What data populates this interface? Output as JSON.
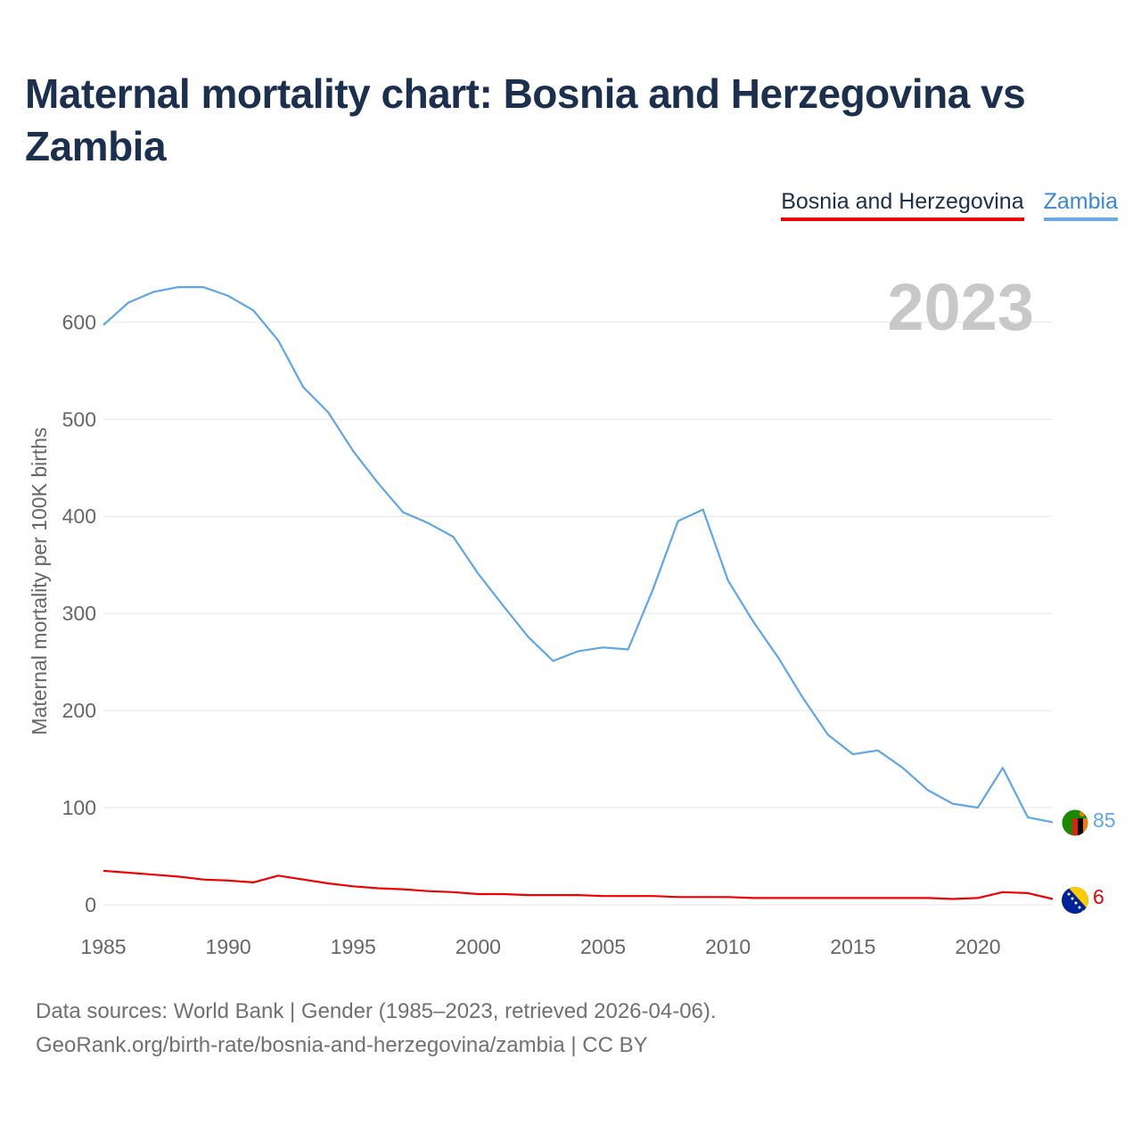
{
  "title": "Maternal mortality chart: Bosnia and Herzegovina vs Zambia",
  "legend": {
    "bosnia": "Bosnia and Herzegovina",
    "zambia": "Zambia"
  },
  "year_overlay": "2023",
  "footer": {
    "line1": "Data sources: World Bank | Gender (1985–2023, retrieved 2026-04-06).",
    "line2": "GeoRank.org/birth-rate/bosnia-and-herzegovina/zambia | CC BY"
  },
  "icons": {
    "zambia_flag": "zambia-flag-icon",
    "bosnia_flag": "bosnia-flag-icon"
  },
  "colors": {
    "bosnia": "#ee0000",
    "zambia": "#5ea6e8",
    "title": "#1b2f4f",
    "axis_text": "#666666",
    "grid": "#e6e6e6",
    "year_overlay": "#c8c8c8"
  },
  "chart_data": {
    "type": "line",
    "title": "Maternal mortality chart: Bosnia and Herzegovina vs Zambia",
    "xlabel": "",
    "ylabel": "Maternal mortality per 100K births",
    "xlim": [
      1985,
      2023
    ],
    "ylim": [
      0,
      650
    ],
    "xticks": [
      1985,
      1990,
      1995,
      2000,
      2005,
      2010,
      2015,
      2020
    ],
    "yticks": [
      0,
      100,
      200,
      300,
      400,
      500,
      600
    ],
    "grid": true,
    "legend_position": "top-right",
    "x": [
      1985,
      1986,
      1987,
      1988,
      1989,
      1990,
      1991,
      1992,
      1993,
      1994,
      1995,
      1996,
      1997,
      1998,
      1999,
      2000,
      2001,
      2002,
      2003,
      2004,
      2005,
      2006,
      2007,
      2008,
      2009,
      2010,
      2011,
      2012,
      2013,
      2014,
      2015,
      2016,
      2017,
      2018,
      2019,
      2020,
      2021,
      2022,
      2023
    ],
    "series": [
      {
        "name": "Bosnia and Herzegovina",
        "color": "#ee0000",
        "end_label": "6",
        "values": [
          35,
          33,
          31,
          29,
          26,
          25,
          23,
          30,
          26,
          22,
          19,
          17,
          16,
          14,
          13,
          11,
          11,
          10,
          10,
          10,
          9,
          9,
          9,
          8,
          8,
          8,
          7,
          7,
          7,
          7,
          7,
          7,
          7,
          7,
          6,
          7,
          13,
          12,
          6
        ]
      },
      {
        "name": "Zambia",
        "color": "#5ea6e8",
        "end_label": "85",
        "values": [
          597,
          620,
          631,
          636,
          636,
          627,
          612,
          581,
          533,
          507,
          467,
          434,
          404,
          393,
          379,
          341,
          308,
          276,
          251,
          261,
          265,
          263,
          325,
          395,
          407,
          334,
          292,
          255,
          213,
          175,
          155,
          159,
          141,
          118,
          104,
          100,
          141,
          90,
          85
        ]
      }
    ]
  }
}
